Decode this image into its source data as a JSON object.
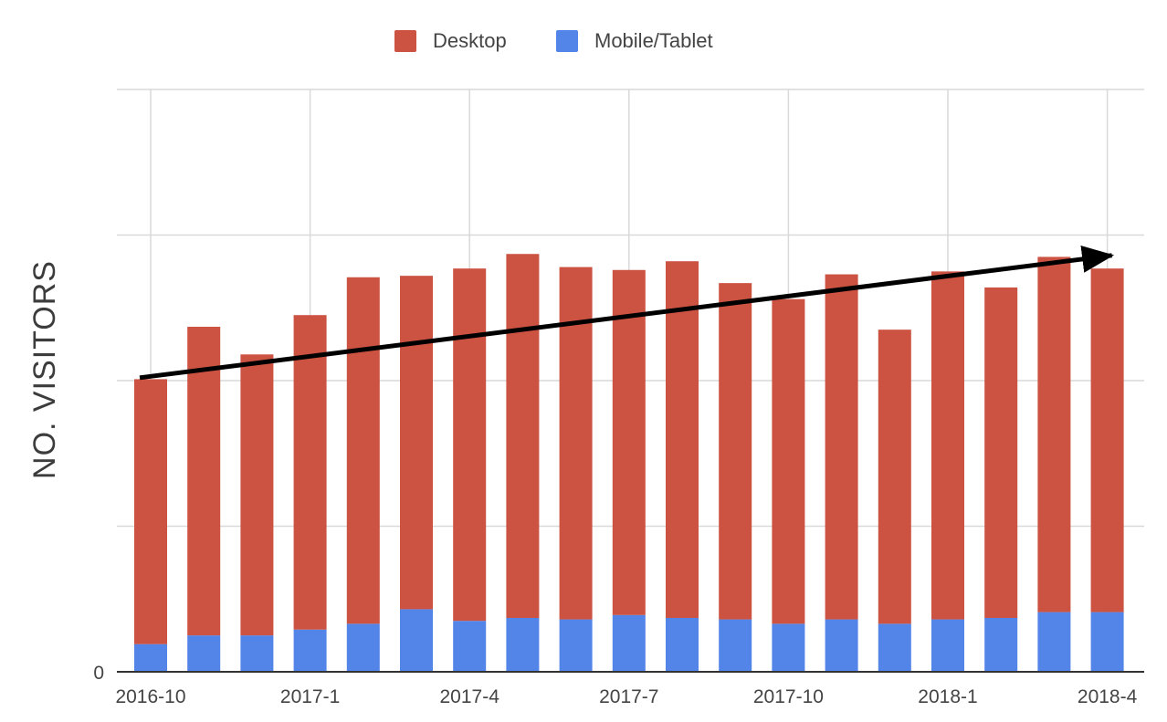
{
  "chart_data": {
    "type": "bar",
    "stacked": true,
    "title": "",
    "xlabel": "",
    "ylabel": "NO. VISITORS",
    "x": [
      "2016-10",
      "2016-11",
      "2016-12",
      "2017-1",
      "2017-2",
      "2017-3",
      "2017-4",
      "2017-5",
      "2017-6",
      "2017-7",
      "2017-8",
      "2017-9",
      "2017-10",
      "2017-11",
      "2017-12",
      "2018-1",
      "2018-2",
      "2018-3",
      "2018-4"
    ],
    "x_tick_labels": [
      "2016-10",
      "2017-1",
      "2017-4",
      "2017-7",
      "2017-10",
      "2018-1",
      "2018-4"
    ],
    "y_tick_labels": [
      "0"
    ],
    "ylim": [
      0,
      4
    ],
    "grid": true,
    "legend": "top",
    "series": [
      {
        "name": "Mobile/Tablet",
        "color": "#5384e8",
        "values": [
          0.19,
          0.25,
          0.25,
          0.29,
          0.33,
          0.43,
          0.35,
          0.37,
          0.36,
          0.39,
          0.37,
          0.36,
          0.33,
          0.36,
          0.33,
          0.36,
          0.37,
          0.41,
          0.41
        ]
      },
      {
        "name": "Desktop",
        "color": "#cc5241",
        "values": [
          1.82,
          2.12,
          1.93,
          2.16,
          2.38,
          2.29,
          2.42,
          2.5,
          2.42,
          2.37,
          2.45,
          2.31,
          2.23,
          2.37,
          2.02,
          2.39,
          2.27,
          2.44,
          2.36
        ]
      }
    ],
    "annotations": [
      {
        "type": "arrow",
        "from": [
          "2016-10",
          2.02
        ],
        "to": [
          "2018-4",
          2.86
        ],
        "color": "#000000"
      }
    ]
  }
}
